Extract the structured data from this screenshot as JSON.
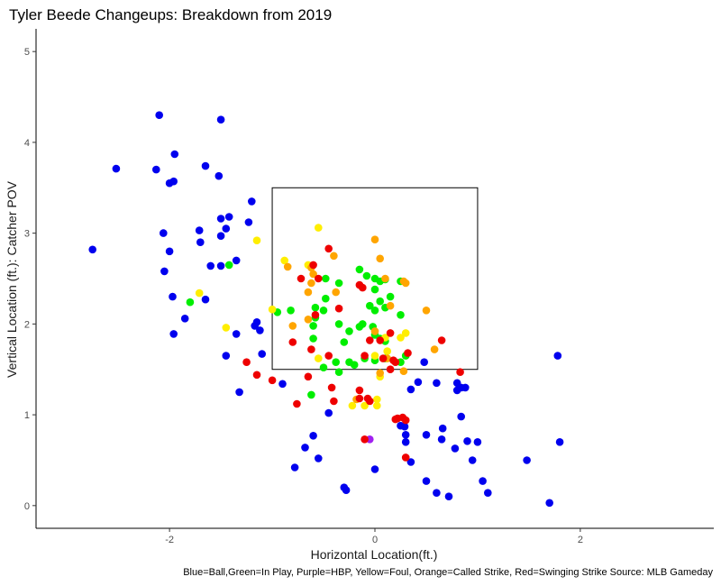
{
  "chart_data": {
    "type": "scatter",
    "title": "Tyler Beede Changeups: Breakdown from 2019",
    "xlabel": "Horizontal Location(ft.)",
    "ylabel": "Vertical Location (ft.): Catcher POV",
    "caption": "Blue=Ball,Green=In Play, Purple=HBP, Yellow=Foul, Orange=Called Strike, Red=Swinging Strike Source: MLB Gameday",
    "xlim": [
      -3.3,
      3.3
    ],
    "ylim": [
      -0.25,
      5.25
    ],
    "x_ticks": [
      -2,
      0,
      2
    ],
    "x_tick_labels": [
      "-2",
      "0",
      "2"
    ],
    "y_ticks": [
      0,
      1,
      2,
      3,
      4,
      5
    ],
    "y_tick_labels": [
      "0",
      "1",
      "2",
      "3",
      "4",
      "5"
    ],
    "grid": false,
    "strike_zone": {
      "x": [
        -1.0,
        1.0
      ],
      "y": [
        1.5,
        3.5
      ]
    },
    "colors": {
      "ball": "#0000ee",
      "in_play": "#00ee00",
      "hbp": "#a020f0",
      "foul": "#ffee00",
      "called_strike": "#ffa500",
      "swinging_strike": "#ee0000"
    },
    "series": [
      {
        "key": "ball",
        "points": [
          [
            -2.1,
            4.3
          ],
          [
            -1.5,
            4.25
          ],
          [
            -1.95,
            3.87
          ],
          [
            -1.65,
            3.74
          ],
          [
            -2.52,
            3.71
          ],
          [
            -2.13,
            3.7
          ],
          [
            -1.52,
            3.63
          ],
          [
            -1.96,
            3.57
          ],
          [
            -2.0,
            3.55
          ],
          [
            -1.2,
            3.35
          ],
          [
            -1.42,
            3.18
          ],
          [
            -1.5,
            3.16
          ],
          [
            -1.23,
            3.12
          ],
          [
            -1.45,
            3.05
          ],
          [
            -1.71,
            3.03
          ],
          [
            -2.06,
            3.0
          ],
          [
            -1.5,
            2.97
          ],
          [
            -1.7,
            2.9
          ],
          [
            -2.75,
            2.82
          ],
          [
            -2.0,
            2.8
          ],
          [
            -1.35,
            2.7
          ],
          [
            -1.6,
            2.64
          ],
          [
            -1.5,
            2.64
          ],
          [
            -2.05,
            2.58
          ],
          [
            -1.97,
            2.3
          ],
          [
            -1.65,
            2.27
          ],
          [
            -1.85,
            2.06
          ],
          [
            -1.15,
            2.02
          ],
          [
            -1.17,
            1.98
          ],
          [
            -1.12,
            1.93
          ],
          [
            -1.35,
            1.89
          ],
          [
            -1.96,
            1.89
          ],
          [
            -1.1,
            1.67
          ],
          [
            -1.45,
            1.65
          ],
          [
            -0.9,
            1.34
          ],
          [
            -1.32,
            1.25
          ],
          [
            -0.45,
            1.02
          ],
          [
            -0.6,
            0.77
          ],
          [
            -0.68,
            0.64
          ],
          [
            -0.55,
            0.52
          ],
          [
            -0.78,
            0.42
          ],
          [
            -0.3,
            0.2
          ],
          [
            -0.28,
            0.17
          ],
          [
            0.0,
            0.4
          ],
          [
            0.48,
            1.58
          ],
          [
            0.35,
            1.28
          ],
          [
            0.42,
            1.36
          ],
          [
            0.6,
            1.35
          ],
          [
            0.8,
            1.35
          ],
          [
            0.84,
            1.3
          ],
          [
            0.8,
            1.27
          ],
          [
            0.88,
            1.3
          ],
          [
            0.25,
            0.88
          ],
          [
            0.29,
            0.87
          ],
          [
            0.3,
            0.78
          ],
          [
            0.3,
            0.7
          ],
          [
            0.5,
            0.78
          ],
          [
            0.66,
            0.85
          ],
          [
            0.84,
            0.98
          ],
          [
            0.65,
            0.73
          ],
          [
            0.78,
            0.63
          ],
          [
            0.9,
            0.71
          ],
          [
            1.0,
            0.7
          ],
          [
            0.95,
            0.5
          ],
          [
            0.35,
            0.48
          ],
          [
            0.5,
            0.27
          ],
          [
            0.6,
            0.14
          ],
          [
            0.72,
            0.1
          ],
          [
            1.05,
            0.27
          ],
          [
            1.1,
            0.14
          ],
          [
            1.48,
            0.5
          ],
          [
            1.7,
            0.03
          ],
          [
            1.78,
            1.65
          ],
          [
            1.8,
            0.7
          ]
        ]
      },
      {
        "key": "in_play",
        "points": [
          [
            -1.42,
            2.65
          ],
          [
            -1.8,
            2.24
          ],
          [
            -0.95,
            2.13
          ],
          [
            -0.82,
            2.15
          ],
          [
            -0.58,
            2.18
          ],
          [
            -0.5,
            2.15
          ],
          [
            -0.58,
            2.07
          ],
          [
            -0.6,
            1.98
          ],
          [
            -0.35,
            2.0
          ],
          [
            -0.3,
            1.8
          ],
          [
            -0.25,
            1.92
          ],
          [
            -0.15,
            1.97
          ],
          [
            -0.12,
            2.0
          ],
          [
            -0.25,
            1.58
          ],
          [
            -0.2,
            1.55
          ],
          [
            -0.38,
            1.58
          ],
          [
            -0.35,
            1.47
          ],
          [
            -0.5,
            1.52
          ],
          [
            -0.6,
            1.84
          ],
          [
            -0.62,
            1.22
          ],
          [
            -0.48,
            2.28
          ],
          [
            -0.48,
            2.5
          ],
          [
            -0.35,
            2.45
          ],
          [
            -0.15,
            2.6
          ],
          [
            -0.08,
            2.53
          ],
          [
            0.0,
            2.5
          ],
          [
            0.05,
            2.47
          ],
          [
            0.1,
            2.49
          ],
          [
            0.25,
            2.47
          ],
          [
            0.15,
            2.3
          ],
          [
            0.0,
            2.38
          ],
          [
            0.05,
            2.25
          ],
          [
            -0.05,
            2.2
          ],
          [
            0.0,
            2.15
          ],
          [
            0.1,
            2.18
          ],
          [
            0.25,
            2.1
          ],
          [
            -0.02,
            1.97
          ],
          [
            0.0,
            1.88
          ],
          [
            0.05,
            1.84
          ],
          [
            0.1,
            1.81
          ],
          [
            -0.1,
            1.62
          ],
          [
            0.0,
            1.6
          ],
          [
            0.25,
            1.58
          ],
          [
            0.1,
            1.62
          ],
          [
            0.3,
            1.65
          ]
        ]
      },
      {
        "key": "hbp",
        "points": [
          [
            -0.05,
            0.73
          ]
        ]
      },
      {
        "key": "foul",
        "points": [
          [
            -1.15,
            2.92
          ],
          [
            -1.71,
            2.34
          ],
          [
            -1.45,
            1.96
          ],
          [
            -1.0,
            2.16
          ],
          [
            -0.88,
            2.7
          ],
          [
            -0.55,
            3.06
          ],
          [
            -0.65,
            2.65
          ],
          [
            -0.55,
            1.62
          ],
          [
            -0.22,
            1.1
          ],
          [
            -0.1,
            1.1
          ],
          [
            0.02,
            1.1
          ],
          [
            0.02,
            1.17
          ],
          [
            0.25,
            1.85
          ],
          [
            0.1,
            1.85
          ],
          [
            0.3,
            1.9
          ],
          [
            0.0,
            1.65
          ],
          [
            0.05,
            1.42
          ],
          [
            0.12,
            1.7
          ]
        ]
      },
      {
        "key": "called_strike",
        "points": [
          [
            -0.85,
            2.63
          ],
          [
            -0.62,
            2.62
          ],
          [
            -0.6,
            2.55
          ],
          [
            -0.62,
            2.45
          ],
          [
            -0.65,
            2.35
          ],
          [
            -0.38,
            2.35
          ],
          [
            -0.4,
            2.75
          ],
          [
            0.0,
            2.93
          ],
          [
            0.05,
            2.72
          ],
          [
            0.1,
            2.5
          ],
          [
            0.3,
            2.45
          ],
          [
            0.28,
            2.47
          ],
          [
            0.5,
            2.15
          ],
          [
            -0.8,
            1.98
          ],
          [
            -0.65,
            2.05
          ],
          [
            0.0,
            1.92
          ],
          [
            0.15,
            2.2
          ],
          [
            -0.18,
            1.17
          ],
          [
            0.12,
            1.62
          ],
          [
            0.05,
            1.46
          ],
          [
            0.28,
            1.48
          ],
          [
            0.58,
            1.72
          ]
        ]
      },
      {
        "key": "swinging_strike",
        "points": [
          [
            -0.45,
            2.83
          ],
          [
            -0.6,
            2.65
          ],
          [
            -0.72,
            2.5
          ],
          [
            -0.55,
            2.5
          ],
          [
            -0.58,
            2.1
          ],
          [
            -0.35,
            2.17
          ],
          [
            -0.8,
            1.8
          ],
          [
            -0.62,
            1.72
          ],
          [
            -0.45,
            1.65
          ],
          [
            -0.65,
            1.42
          ],
          [
            -0.42,
            1.3
          ],
          [
            -0.4,
            1.15
          ],
          [
            -0.76,
            1.12
          ],
          [
            -0.15,
            2.43
          ],
          [
            -0.12,
            2.4
          ],
          [
            0.15,
            1.9
          ],
          [
            0.05,
            1.82
          ],
          [
            -0.05,
            1.82
          ],
          [
            -0.1,
            1.65
          ],
          [
            0.08,
            1.62
          ],
          [
            0.18,
            1.6
          ],
          [
            0.15,
            1.5
          ],
          [
            0.2,
            1.58
          ],
          [
            0.32,
            1.68
          ],
          [
            -0.15,
            1.27
          ],
          [
            -0.15,
            1.18
          ],
          [
            -0.07,
            1.18
          ],
          [
            -0.05,
            1.15
          ],
          [
            0.2,
            0.95
          ],
          [
            0.22,
            0.96
          ],
          [
            0.3,
            0.94
          ],
          [
            0.27,
            0.97
          ],
          [
            -0.1,
            0.73
          ],
          [
            0.3,
            0.53
          ],
          [
            0.65,
            1.82
          ],
          [
            0.83,
            1.47
          ],
          [
            -1.15,
            1.44
          ],
          [
            -1.0,
            1.38
          ],
          [
            -1.25,
            1.58
          ]
        ]
      }
    ]
  }
}
